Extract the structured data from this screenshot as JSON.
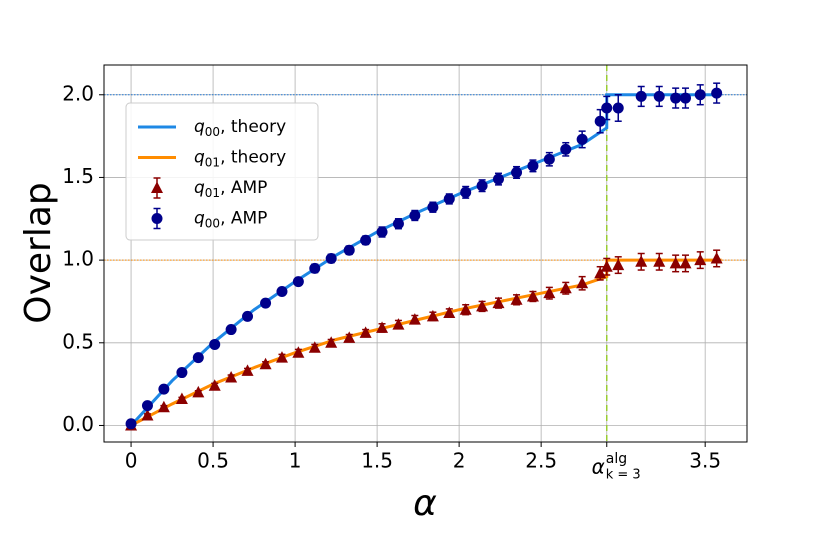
{
  "chart_data": {
    "type": "line_errorbar",
    "xlabel": "α",
    "ylabel": "Overlap",
    "xlim": [
      -0.165,
      3.755
    ],
    "ylim": [
      -0.1,
      2.18
    ],
    "xticks": [
      0,
      0.5,
      1,
      1.5,
      2,
      2.5,
      {
        "value": 2.9,
        "label": "α",
        "label_sup": "alg",
        "label_sub": "k = 3"
      },
      3.5
    ],
    "yticks": [
      {
        "value": 0,
        "label": "0.0"
      },
      {
        "value": 0.5,
        "label": "0.5"
      },
      {
        "value": 1,
        "label": "1.0"
      },
      {
        "value": 1.5,
        "label": "1.5"
      },
      {
        "value": 2,
        "label": "2.0"
      }
    ],
    "grid": true,
    "legend": "upper left",
    "hlines": [
      {
        "value": 2.0,
        "color": "#1f77d4"
      },
      {
        "value": 1.0,
        "color": "#ff8c00"
      }
    ],
    "vline": {
      "value": 2.9,
      "color": "#9acd32"
    },
    "series": [
      {
        "name": "q",
        "name_sub": "00",
        "name_suffix": ", theory",
        "kind": "line",
        "color": "#1e88e5",
        "x": [
          0,
          0.25,
          0.5,
          0.75,
          1,
          1.25,
          1.5,
          1.75,
          2,
          2.25,
          2.5,
          2.75,
          2.9,
          2.9,
          3.6
        ],
        "values": [
          0,
          0.27,
          0.5,
          0.7,
          0.87,
          1.03,
          1.17,
          1.29,
          1.4,
          1.5,
          1.6,
          1.7,
          1.8,
          2.0,
          2.0
        ]
      },
      {
        "name": "q",
        "name_sub": "01",
        "name_suffix": ", theory",
        "kind": "line",
        "color": "#ff8c00",
        "x": [
          0,
          0.25,
          0.5,
          0.75,
          1,
          1.25,
          1.5,
          1.75,
          2,
          2.25,
          2.5,
          2.75,
          2.9,
          2.9,
          3.6
        ],
        "values": [
          0,
          0.13,
          0.25,
          0.35,
          0.44,
          0.52,
          0.58,
          0.64,
          0.7,
          0.75,
          0.8,
          0.85,
          0.9,
          1.0,
          1.0
        ]
      },
      {
        "name": "q",
        "name_sub": "01",
        "name_suffix": ", AMP",
        "kind": "triangle",
        "color": "#8b0000",
        "x": [
          0,
          0.1,
          0.2,
          0.31,
          0.41,
          0.51,
          0.61,
          0.71,
          0.82,
          0.92,
          1.02,
          1.12,
          1.22,
          1.33,
          1.43,
          1.53,
          1.63,
          1.73,
          1.84,
          1.94,
          2.04,
          2.14,
          2.24,
          2.35,
          2.45,
          2.55,
          2.65,
          2.75,
          2.86,
          2.9,
          2.97,
          3.11,
          3.22,
          3.32,
          3.38,
          3.47,
          3.57
        ],
        "values": [
          0,
          0.06,
          0.11,
          0.16,
          0.2,
          0.24,
          0.29,
          0.33,
          0.37,
          0.41,
          0.44,
          0.47,
          0.5,
          0.53,
          0.56,
          0.59,
          0.61,
          0.64,
          0.66,
          0.68,
          0.7,
          0.72,
          0.74,
          0.76,
          0.78,
          0.8,
          0.83,
          0.86,
          0.92,
          0.96,
          0.97,
          0.99,
          0.99,
          0.98,
          0.98,
          1.0,
          1.01
        ],
        "errors": [
          0.01,
          0.01,
          0.01,
          0.01,
          0.01,
          0.015,
          0.015,
          0.015,
          0.015,
          0.02,
          0.02,
          0.02,
          0.02,
          0.02,
          0.02,
          0.025,
          0.025,
          0.025,
          0.025,
          0.025,
          0.03,
          0.03,
          0.03,
          0.03,
          0.03,
          0.035,
          0.035,
          0.04,
          0.04,
          0.05,
          0.05,
          0.05,
          0.05,
          0.05,
          0.05,
          0.05,
          0.05
        ]
      },
      {
        "name": "q",
        "name_sub": "00",
        "name_suffix": ", AMP",
        "kind": "circle",
        "color": "#00008b",
        "x": [
          0,
          0.1,
          0.2,
          0.31,
          0.41,
          0.51,
          0.61,
          0.71,
          0.82,
          0.92,
          1.02,
          1.12,
          1.22,
          1.33,
          1.43,
          1.53,
          1.63,
          1.73,
          1.84,
          1.94,
          2.04,
          2.14,
          2.24,
          2.35,
          2.45,
          2.55,
          2.65,
          2.75,
          2.86,
          2.9,
          2.97,
          3.11,
          3.22,
          3.32,
          3.38,
          3.47,
          3.57
        ],
        "values": [
          0.01,
          0.12,
          0.22,
          0.32,
          0.41,
          0.49,
          0.58,
          0.66,
          0.74,
          0.81,
          0.87,
          0.95,
          1.01,
          1.06,
          1.12,
          1.17,
          1.22,
          1.27,
          1.32,
          1.37,
          1.41,
          1.45,
          1.49,
          1.53,
          1.57,
          1.61,
          1.67,
          1.73,
          1.84,
          1.92,
          1.92,
          1.99,
          1.99,
          1.98,
          1.98,
          2.0,
          2.01
        ],
        "errors": [
          0.01,
          0.01,
          0.01,
          0.015,
          0.015,
          0.015,
          0.02,
          0.02,
          0.02,
          0.02,
          0.02,
          0.025,
          0.025,
          0.025,
          0.025,
          0.03,
          0.03,
          0.03,
          0.03,
          0.03,
          0.035,
          0.035,
          0.035,
          0.035,
          0.035,
          0.04,
          0.04,
          0.05,
          0.07,
          0.07,
          0.08,
          0.06,
          0.06,
          0.06,
          0.06,
          0.06,
          0.06
        ]
      }
    ]
  }
}
